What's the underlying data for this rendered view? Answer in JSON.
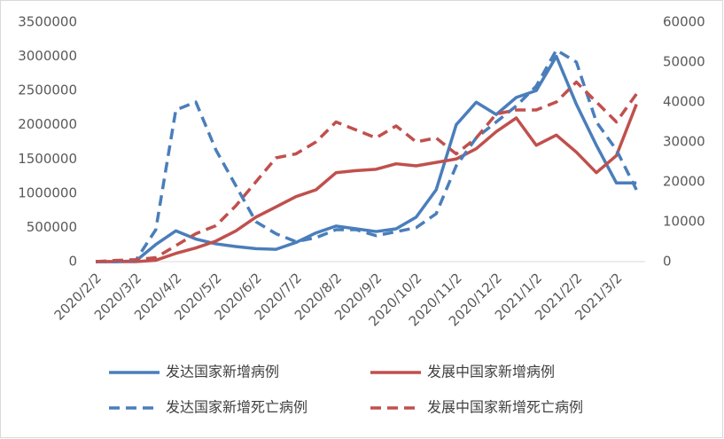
{
  "chart_data": {
    "type": "line",
    "categories": [
      "2020/2/2",
      null,
      "2020/3/2",
      null,
      "2020/4/2",
      null,
      "2020/5/2",
      null,
      "2020/6/2",
      null,
      "2020/7/2",
      null,
      "2020/8/2",
      null,
      "2020/9/2",
      null,
      "2020/10/2",
      null,
      "2020/11/2",
      null,
      "2020/12/2",
      null,
      "2021/1/2",
      null,
      "2021/2/2",
      null,
      "2021/3/2",
      null
    ],
    "ylim": [
      0,
      3500000
    ],
    "yticks": [
      0,
      500000,
      1000000,
      1500000,
      2000000,
      2500000,
      3000000,
      3500000
    ],
    "y2lim": [
      0,
      60000
    ],
    "y2ticks": [
      0,
      10000,
      20000,
      30000,
      40000,
      50000,
      60000
    ],
    "legend": "bottom",
    "series": [
      {
        "name": "发达国家新增病例",
        "color": "#4a7ebb",
        "dash": false,
        "values": [
          0,
          0,
          10000,
          250000,
          450000,
          330000,
          260000,
          220000,
          190000,
          180000,
          280000,
          420000,
          520000,
          480000,
          440000,
          480000,
          650000,
          1050000,
          2000000,
          2330000,
          2150000,
          2400000,
          2500000,
          3000000,
          2300000,
          1700000,
          1150000,
          1150000
        ]
      },
      {
        "name": "发展中国家新增病例",
        "color": "#c0504d",
        "dash": false,
        "values": [
          0,
          0,
          0,
          20000,
          120000,
          200000,
          300000,
          450000,
          650000,
          800000,
          950000,
          1050000,
          1300000,
          1330000,
          1350000,
          1430000,
          1400000,
          1450000,
          1500000,
          1650000,
          1900000,
          2100000,
          1700000,
          1850000,
          1600000,
          1300000,
          1550000,
          2300000
        ]
      },
      {
        "name": "发达国家新增死亡病例",
        "color": "#4a7ebb",
        "dash": true,
        "axis": "y2",
        "values": [
          0,
          0,
          300,
          8000,
          38000,
          40000,
          28000,
          19000,
          10000,
          7000,
          5000,
          6000,
          8000,
          8000,
          6500,
          7500,
          8500,
          12000,
          24000,
          31000,
          35000,
          39000,
          44000,
          53000,
          50000,
          35000,
          28000,
          18000
        ]
      },
      {
        "name": "发展中国家新增死亡病例",
        "color": "#c0504d",
        "dash": true,
        "axis": "y2",
        "values": [
          0,
          300,
          500,
          1000,
          4000,
          7000,
          9000,
          14000,
          20000,
          26000,
          27000,
          30000,
          35000,
          33000,
          31000,
          34000,
          30000,
          31000,
          27000,
          31000,
          37000,
          38000,
          38000,
          40000,
          45000,
          40000,
          35000,
          42000
        ]
      }
    ]
  }
}
